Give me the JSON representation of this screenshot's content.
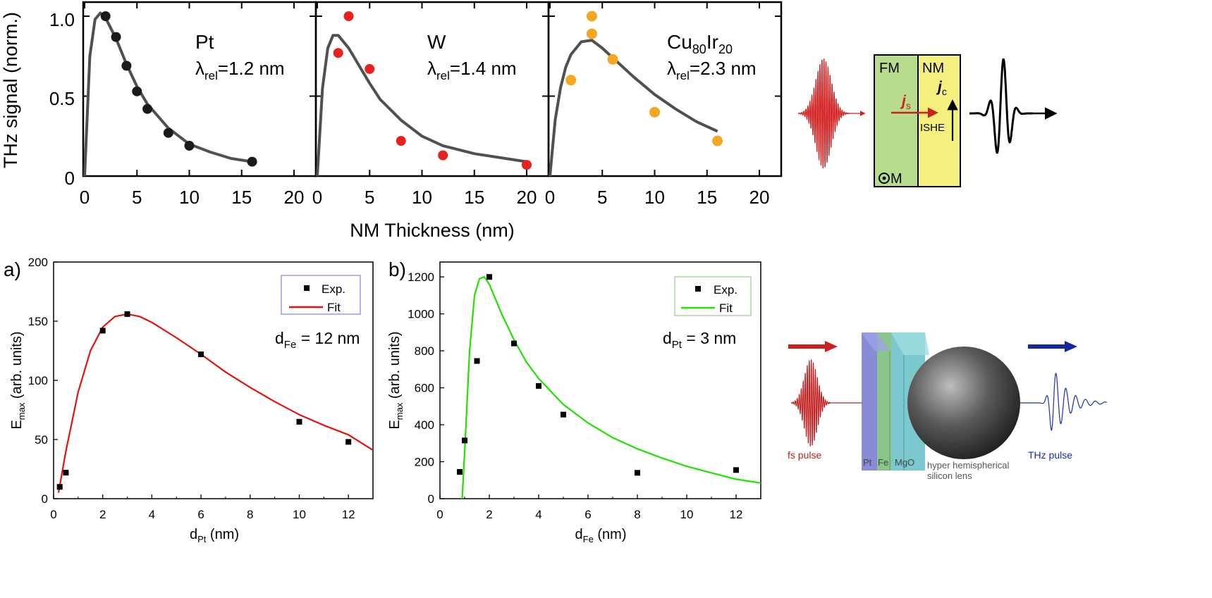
{
  "figure": {
    "top_row": {
      "ylabel": "THz signal (norm.)",
      "xlabel": "NM Thickness (nm)",
      "xlim": [
        0,
        21
      ],
      "ylim": [
        0,
        1.05
      ],
      "y_ticks": [
        "0",
        "0.5",
        "1.0"
      ],
      "panels": [
        {
          "material": "Pt",
          "lambda_label": "λ",
          "lambda_sub": "rel",
          "lambda_value": "=1.2 nm",
          "x_ticks": [
            "0",
            "5",
            "10",
            "15",
            "20"
          ]
        },
        {
          "material": "W",
          "lambda_label": "λ",
          "lambda_sub": "rel",
          "lambda_value": "=1.4 nm",
          "x_ticks": [
            "0",
            "5",
            "10",
            "15",
            "20"
          ]
        },
        {
          "material_a": "Cu",
          "material_a_sub": "80",
          "material_b": "Ir",
          "material_b_sub": "20",
          "lambda_label": "λ",
          "lambda_sub": "rel",
          "lambda_value": "=2.3 nm",
          "x_ticks": [
            "0",
            "5",
            "10",
            "15",
            "20"
          ]
        }
      ]
    },
    "schematic_top": {
      "fm_label": "FM",
      "nm_label": "NM",
      "js_label": "j",
      "js_sub": "s",
      "jc_label": "j",
      "jc_sub": "c",
      "ishe_label": "ISHE",
      "m_label": "M"
    },
    "panel_a": {
      "panel_label": "a)",
      "xlabel_main": "d",
      "xlabel_sub": "Pt",
      "xlabel_tail": " (nm)",
      "ylabel_main": "E",
      "ylabel_sub": "max",
      "ylabel_tail": " (arb. units)",
      "annotation_main": "d",
      "annotation_sub": "Fe",
      "annotation_tail": " = 12 nm",
      "legend_exp": "Exp.",
      "legend_fit": "Fit",
      "x_ticks": [
        "0",
        "2",
        "4",
        "6",
        "8",
        "10",
        "12"
      ],
      "y_ticks": [
        "0",
        "50",
        "100",
        "150",
        "200"
      ]
    },
    "panel_b": {
      "panel_label": "b)",
      "xlabel_main": "d",
      "xlabel_sub": "Fe",
      "xlabel_tail": " (nm)",
      "ylabel_main": "E",
      "ylabel_sub": "max",
      "ylabel_tail": " (arb. units)",
      "annotation_main": "d",
      "annotation_sub": "Pt",
      "annotation_tail": " = 3 nm",
      "legend_exp": "Exp.",
      "legend_fit": "Fit",
      "x_ticks": [
        "0",
        "2",
        "4",
        "6",
        "8",
        "10",
        "12"
      ],
      "y_ticks": [
        "0",
        "200",
        "400",
        "600",
        "800",
        "1000",
        "1200"
      ]
    },
    "schematic_bottom": {
      "fs_label": "fs pulse",
      "thz_label": "THz pulse",
      "layer_pt": "Pt",
      "layer_fe": "Fe",
      "layer_mgo": "MgO",
      "lens_line1": "hyper hemispherical",
      "lens_line2": "silicon lens"
    }
  },
  "colors": {
    "axis": "#000000",
    "fit_gray": "#505050",
    "pt_marker": "#1a1a1a",
    "w_marker": "#e8201e",
    "cuir_marker": "#f5a623",
    "fit_red": "#e3120b",
    "fit_green": "#22e000",
    "fm_fill": "#b7dc8c",
    "nm_fill": "#f5f07d",
    "pulse_red": "#d42020",
    "thz_blue": "#1a2eb0",
    "arrow_red": "#cc1f1f",
    "arrow_blue": "#15299c",
    "layer_pt": "#7a7fcf",
    "layer_fe": "#7fbf7f",
    "layer_mgo": "#6dc3c9",
    "legend_border": "#6a6adf"
  },
  "chart_data": [
    {
      "type": "scatter",
      "title": "Pt λrel=1.2 nm",
      "xlabel": "NM Thickness (nm)",
      "ylabel": "THz signal (norm.)",
      "xlim": [
        0,
        21
      ],
      "ylim": [
        0,
        1.05
      ],
      "series": [
        {
          "name": "data",
          "x": [
            2,
            3,
            4,
            5,
            6,
            8,
            10,
            16
          ],
          "y": [
            1.0,
            0.87,
            0.69,
            0.53,
            0.42,
            0.27,
            0.19,
            0.09
          ]
        },
        {
          "name": "fit",
          "lambda_nm": 1.2,
          "x": [
            0,
            0.5,
            1,
            1.5,
            2,
            3,
            4,
            5,
            6,
            8,
            10,
            12,
            14,
            16
          ],
          "y": [
            0,
            0.75,
            0.98,
            1.02,
            0.99,
            0.86,
            0.7,
            0.56,
            0.45,
            0.3,
            0.2,
            0.15,
            0.11,
            0.09
          ]
        }
      ]
    },
    {
      "type": "scatter",
      "title": "W λrel=1.4 nm",
      "xlabel": "NM Thickness (nm)",
      "ylabel": "THz signal (norm.)",
      "xlim": [
        0,
        21
      ],
      "ylim": [
        0,
        1.05
      ],
      "series": [
        {
          "name": "data",
          "x": [
            2,
            3,
            5,
            8,
            12,
            20
          ],
          "y": [
            0.77,
            1.0,
            0.67,
            0.22,
            0.13,
            0.07
          ]
        },
        {
          "name": "fit",
          "lambda_nm": 1.4,
          "x": [
            0,
            0.5,
            1,
            1.5,
            2,
            3,
            4,
            5,
            6,
            8,
            10,
            12,
            15,
            20
          ],
          "y": [
            0,
            0.55,
            0.8,
            0.88,
            0.88,
            0.8,
            0.69,
            0.58,
            0.48,
            0.35,
            0.25,
            0.19,
            0.14,
            0.09
          ]
        }
      ]
    },
    {
      "type": "scatter",
      "title": "Cu80Ir20 λrel=2.3 nm",
      "xlabel": "NM Thickness (nm)",
      "ylabel": "THz signal (norm.)",
      "xlim": [
        0,
        21
      ],
      "ylim": [
        0,
        1.05
      ],
      "series": [
        {
          "name": "data",
          "x": [
            2,
            4,
            4,
            6,
            10,
            16
          ],
          "y": [
            0.6,
            1.0,
            0.89,
            0.73,
            0.4,
            0.22
          ]
        },
        {
          "name": "fit",
          "lambda_nm": 2.3,
          "x": [
            0,
            0.5,
            1,
            1.5,
            2,
            3,
            4,
            5,
            6,
            8,
            10,
            12,
            14,
            16
          ],
          "y": [
            0,
            0.35,
            0.55,
            0.68,
            0.76,
            0.84,
            0.85,
            0.8,
            0.74,
            0.62,
            0.51,
            0.42,
            0.34,
            0.28
          ]
        }
      ]
    },
    {
      "type": "scatter",
      "title": "a) dFe = 12 nm",
      "xlabel": "dPt (nm)",
      "ylabel": "Emax (arb. units)",
      "xlim": [
        0,
        13
      ],
      "ylim": [
        0,
        200
      ],
      "series": [
        {
          "name": "Exp.",
          "x": [
            0.25,
            0.5,
            2,
            3,
            6,
            10,
            12
          ],
          "y": [
            10,
            22,
            142,
            156,
            122,
            65,
            48
          ]
        },
        {
          "name": "Fit",
          "x": [
            0.2,
            0.5,
            1,
            1.5,
            2,
            2.5,
            3,
            3.5,
            4,
            5,
            6,
            7,
            8,
            9,
            10,
            11,
            12,
            13
          ],
          "y": [
            5,
            40,
            90,
            125,
            145,
            154,
            156,
            154,
            149,
            136,
            122,
            107,
            94,
            82,
            71,
            62,
            54,
            41
          ]
        }
      ]
    },
    {
      "type": "scatter",
      "title": "b) dPt = 3 nm",
      "xlabel": "dFe (nm)",
      "ylabel": "Emax (arb. units)",
      "xlim": [
        0,
        13
      ],
      "ylim": [
        0,
        1300
      ],
      "series": [
        {
          "name": "Exp.",
          "x": [
            0.8,
            1,
            1.5,
            2,
            3,
            4,
            5,
            8,
            12
          ],
          "y": [
            145,
            315,
            745,
            1200,
            840,
            610,
            455,
            140,
            155
          ]
        },
        {
          "name": "Fit",
          "x": [
            0.9,
            1,
            1.2,
            1.4,
            1.6,
            1.8,
            2,
            2.5,
            3,
            3.5,
            4,
            5,
            6,
            7,
            8,
            9,
            10,
            11,
            12,
            13
          ],
          "y": [
            0,
            250,
            800,
            1100,
            1190,
            1200,
            1160,
            1000,
            860,
            740,
            650,
            510,
            410,
            330,
            270,
            220,
            175,
            140,
            105,
            85
          ]
        }
      ]
    }
  ]
}
